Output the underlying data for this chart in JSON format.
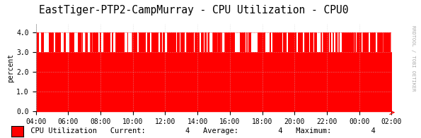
{
  "title": "EastTiger-PTP2-CampMurray - CPU Utilization - CPU0",
  "ylabel": "percent",
  "background_color": "#ffffff",
  "plot_bg_color": "#ffffff",
  "grid_color": "#cccccc",
  "x_labels": [
    "04:00",
    "06:00",
    "08:00",
    "10:00",
    "12:00",
    "14:00",
    "16:00",
    "18:00",
    "20:00",
    "22:00",
    "00:00",
    "02:00"
  ],
  "ylim": [
    0.0,
    4.4
  ],
  "yticks": [
    0.0,
    1.0,
    2.0,
    3.0,
    4.0
  ],
  "area_color": "#ff0000",
  "legend_label": "CPU Utilization",
  "legend_current": "4",
  "legend_average": "4",
  "legend_maximum": "4",
  "rrdtool_text": "RRDTOOL / TOBI OETIKER",
  "title_fontsize": 10.5,
  "axis_fontsize": 7,
  "legend_fontsize": 7.5,
  "ylabel_fontsize": 7
}
